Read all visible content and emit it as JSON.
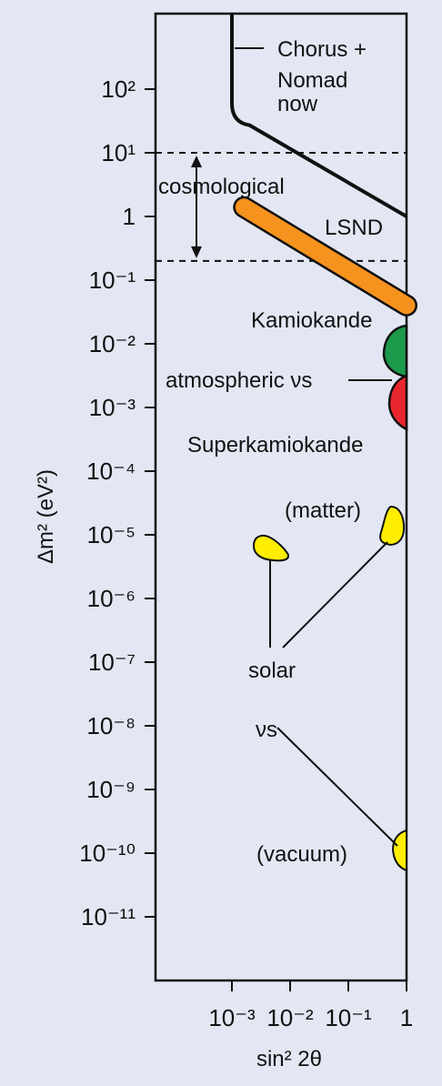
{
  "chart_data": {
    "type": "region plot",
    "xlabel": "sin² 2θ",
    "ylabel": "Δm² (eV²)",
    "x_scale": "log",
    "y_scale": "log",
    "xlim": [
      0.00025,
      1
    ],
    "ylim": [
      1e-12,
      10000.0
    ],
    "x_ticks": [
      {
        "value": 0.001,
        "label": "10⁻³"
      },
      {
        "value": 0.01,
        "label": "10⁻²"
      },
      {
        "value": 0.1,
        "label": "10⁻¹"
      },
      {
        "value": 1,
        "label": "1"
      }
    ],
    "y_ticks": [
      {
        "value": 100,
        "label": "10²"
      },
      {
        "value": 10,
        "label": "10¹"
      },
      {
        "value": 1,
        "label": "1"
      },
      {
        "value": 0.1,
        "label": "10⁻¹"
      },
      {
        "value": 0.01,
        "label": "10⁻²"
      },
      {
        "value": 0.001,
        "label": "10⁻³"
      },
      {
        "value": 0.0001,
        "label": "10⁻⁴"
      },
      {
        "value": 1e-05,
        "label": "10⁻⁵"
      },
      {
        "value": 1e-06,
        "label": "10⁻⁶"
      },
      {
        "value": 1e-07,
        "label": "10⁻⁷"
      },
      {
        "value": 1e-08,
        "label": "10⁻⁸"
      },
      {
        "value": 1e-09,
        "label": "10⁻⁹"
      },
      {
        "value": 1e-10,
        "label": "10⁻¹⁰"
      },
      {
        "value": 1e-11,
        "label": "10⁻¹¹"
      }
    ],
    "grid": false,
    "boundary": {
      "name": "Chorus + Nomad now",
      "points": [
        [
          0.001,
          10000
        ],
        [
          0.001,
          60
        ],
        [
          0.0015,
          30
        ],
        [
          1,
          1
        ]
      ]
    },
    "cosmological_band": {
      "label": "cosmological",
      "y_range": [
        0.2,
        10
      ]
    },
    "regions": [
      {
        "name": "LSND",
        "color": "#f6921e",
        "band": [
          [
            0.0015,
            1.4
          ],
          [
            1,
            0.04
          ]
        ]
      },
      {
        "name": "Kamiokande",
        "color": "#1a9a4a",
        "x_range": [
          0.6,
          1
        ],
        "y_range": [
          0.004,
          0.018
        ]
      },
      {
        "name": "Superkamiokande",
        "color": "#e8262d",
        "x_range": [
          0.7,
          1
        ],
        "y_range": [
          0.0005,
          0.0035
        ]
      },
      {
        "name": "solar (matter)",
        "color": "#ffee00",
        "x_range": [
          0.6,
          0.9
        ],
        "y_range": [
          1.2e-05,
          3e-05
        ]
      },
      {
        "name": "solar (small angle)",
        "color": "#ffee00",
        "x_range": [
          0.0025,
          0.009
        ],
        "y_range": [
          5e-06,
          1e-05
        ]
      },
      {
        "name": "solar (vacuum)",
        "color": "#ffee00",
        "x_range": [
          0.75,
          1
        ],
        "y_range": [
          5e-11,
          1.5e-10
        ]
      }
    ]
  },
  "labels": {
    "chorus_line1": "Chorus +",
    "chorus_line2": "Nomad",
    "chorus_line3": "now",
    "cosmological": "cosmological",
    "lsnd": "LSND",
    "kamiokande": "Kamiokande",
    "atmospheric": "atmospheric νs",
    "superkamiokande": "Superkamiokande",
    "matter": "(matter)",
    "solar_line1": "solar",
    "solar_line2": "νs",
    "vacuum": "(vacuum)"
  }
}
